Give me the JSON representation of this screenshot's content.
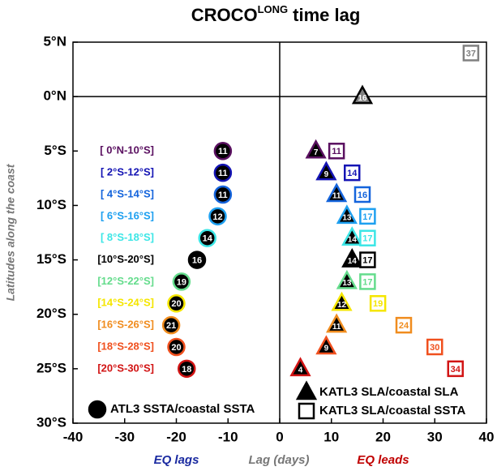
{
  "chart_data": {
    "type": "scatter",
    "title": "CROCO",
    "title_superscript": "LONG",
    "title_suffix": "time lag",
    "x_label": "Lag (days)",
    "y_label": "Latitudes along the coast",
    "x_annotations": [
      {
        "text": "EQ lags",
        "x": -20,
        "color": "#1a2aa0"
      },
      {
        "text": "EQ leads",
        "x": 20,
        "color": "#c00000"
      }
    ],
    "xlim": [
      -40,
      40
    ],
    "xticks": [
      -40,
      -30,
      -20,
      -10,
      0,
      10,
      20,
      30,
      40
    ],
    "ylim": [
      -30,
      5
    ],
    "yticks": [
      {
        "value": 5,
        "label": "5°N"
      },
      {
        "value": 0,
        "label": "0°N"
      },
      {
        "value": -5,
        "label": "5°S"
      },
      {
        "value": -10,
        "label": "10°S"
      },
      {
        "value": -15,
        "label": "15°S"
      },
      {
        "value": -20,
        "label": "20°S"
      },
      {
        "value": -25,
        "label": "25°S"
      },
      {
        "value": -30,
        "label": "30°S"
      }
    ],
    "zero_lines": true,
    "regions": [
      "[ 0°N-10°S]",
      "[ 2°S-12°S]",
      "[ 4°S-14°S]",
      "[ 6°S-16°S]",
      "[ 8°S-18°S]",
      "[10°S-20°S]",
      "[12°S-22°S]",
      "[14°S-24°S]",
      "[16°S-26°S]",
      "[18°S-28°S]",
      "[20°S-30°S]"
    ],
    "series": [
      {
        "name": "ATL3 SSTA/coastal SSTA",
        "marker": "circle",
        "x": [
          -11,
          -11,
          -11,
          -12,
          -14,
          -16,
          -19,
          -20,
          -21,
          -20,
          -18
        ],
        "y": [
          -5,
          -7,
          -9,
          -11,
          -13,
          -15,
          -17,
          -19,
          -21,
          -23,
          -25
        ],
        "value_labels": [
          "11",
          "11",
          "11",
          "12",
          "14",
          "16",
          "19",
          "20",
          "21",
          "20",
          "18"
        ],
        "colors": [
          "#5a1060",
          "#1414b4",
          "#1464dc",
          "#1ea0f0",
          "#3ce6e6",
          "#000000",
          "#64dc8c",
          "#f5e600",
          "#f08c1e",
          "#f0501e",
          "#d21414"
        ]
      },
      {
        "name": "KATL3 SLA/coastal SLA",
        "marker": "triangle",
        "x": [
          16,
          7,
          9,
          11,
          13,
          14,
          14,
          13,
          12,
          11,
          9,
          4
        ],
        "y": [
          0,
          -5,
          -7,
          -9,
          -11,
          -13,
          -15,
          -17,
          -19,
          -21,
          -23,
          -25
        ],
        "colors": [
          "#808080",
          "#5a1060",
          "#1414b4",
          "#1464dc",
          "#1ea0f0",
          "#3ce6e6",
          "#000000",
          "#64dc8c",
          "#f5e600",
          "#f08c1e",
          "#f0501e",
          "#d21414"
        ]
      },
      {
        "name": "KATL3 SLA/coastal SSTA",
        "marker": "square",
        "x": [
          37,
          11,
          14,
          16,
          17,
          17,
          17,
          17,
          19,
          24,
          30,
          34
        ],
        "y": [
          4,
          -5,
          -7,
          -9,
          -11,
          -13,
          -15,
          -17,
          -19,
          -21,
          -23,
          -25
        ],
        "colors": [
          "#808080",
          "#5a1060",
          "#1414b4",
          "#1464dc",
          "#1ea0f0",
          "#3ce6e6",
          "#000000",
          "#64dc8c",
          "#f5e600",
          "#f08c1e",
          "#f0501e",
          "#d21414"
        ]
      }
    ]
  }
}
